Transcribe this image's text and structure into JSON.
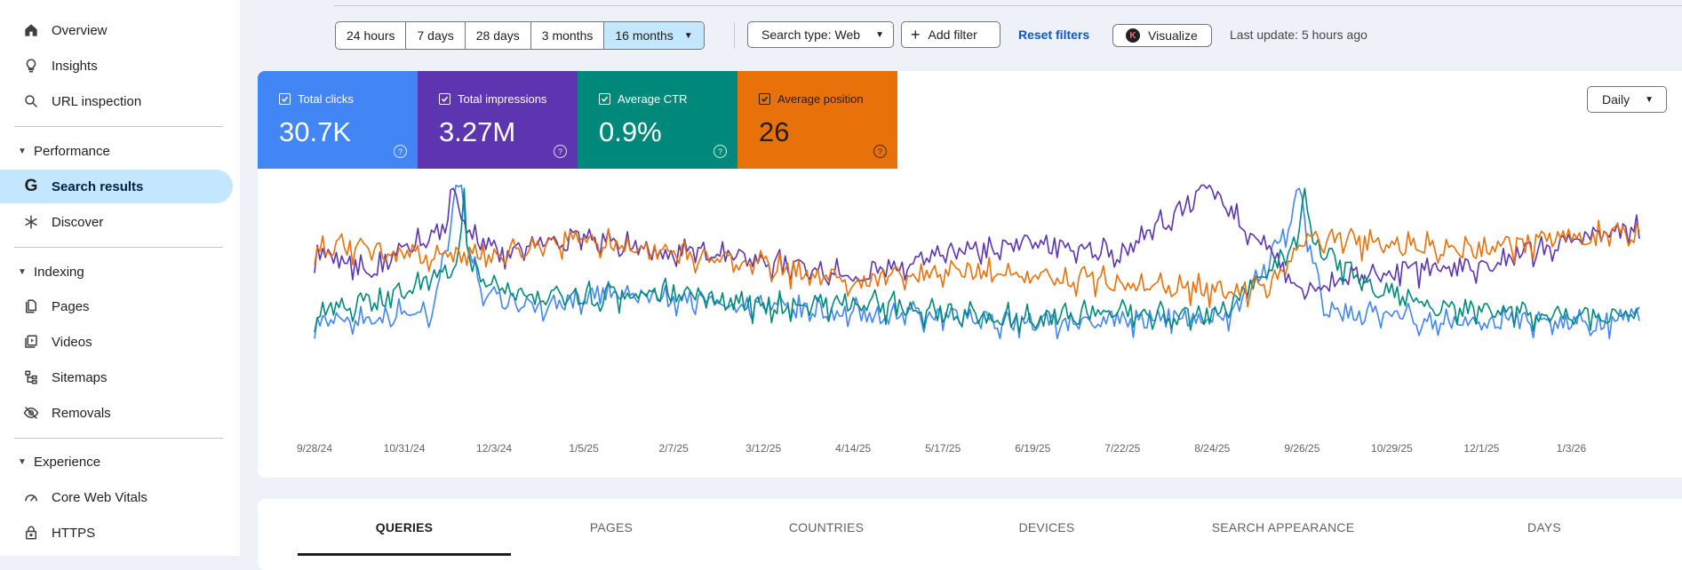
{
  "sidebar": {
    "items_top": [
      {
        "label": "Overview",
        "icon": "home-icon"
      },
      {
        "label": "Insights",
        "icon": "lightbulb-icon"
      },
      {
        "label": "URL inspection",
        "icon": "search-icon"
      }
    ],
    "sections": [
      {
        "title": "Performance",
        "items": [
          {
            "label": "Search results",
            "icon": "google-g-icon",
            "active": true
          },
          {
            "label": "Discover",
            "icon": "asterisk-icon"
          }
        ]
      },
      {
        "title": "Indexing",
        "items": [
          {
            "label": "Pages",
            "icon": "pages-icon"
          },
          {
            "label": "Videos",
            "icon": "video-icon"
          },
          {
            "label": "Sitemaps",
            "icon": "sitemap-icon"
          },
          {
            "label": "Removals",
            "icon": "eye-off-icon"
          }
        ]
      },
      {
        "title": "Experience",
        "items": [
          {
            "label": "Core Web Vitals",
            "icon": "gauge-icon"
          },
          {
            "label": "HTTPS",
            "icon": "lock-icon"
          }
        ]
      }
    ]
  },
  "toolbar": {
    "ranges": [
      "24 hours",
      "7 days",
      "28 days",
      "3 months",
      "16 months"
    ],
    "active_range": "16 months",
    "search_type": "Search type: Web",
    "add_filter": "Add filter",
    "reset_filters": "Reset filters",
    "visualize": "Visualize",
    "visualize_badge": "K",
    "last_update": "Last update: 5 hours ago"
  },
  "metrics": [
    {
      "label": "Total clicks",
      "value": "30.7K",
      "color": "#4285f4"
    },
    {
      "label": "Total impressions",
      "value": "3.27M",
      "color": "#5e35b1"
    },
    {
      "label": "Average CTR",
      "value": "0.9%",
      "color": "#00897b"
    },
    {
      "label": "Average position",
      "value": "26",
      "color": "#e8710a"
    }
  ],
  "granularity": "Daily",
  "chart_data": {
    "type": "line",
    "x_tick_labels": [
      "9/28/24",
      "10/31/24",
      "12/3/24",
      "1/5/25",
      "2/7/25",
      "3/12/25",
      "4/14/25",
      "5/17/25",
      "6/19/25",
      "7/22/25",
      "8/24/25",
      "9/26/25",
      "10/29/25",
      "12/1/25",
      "1/3/26"
    ],
    "x_range": [
      "9/28/24",
      "1/28/26"
    ],
    "y_axis": "none",
    "grid": false,
    "series": [
      {
        "name": "Total clicks",
        "color": "#4285f4",
        "spike_dates": [
          "11/20/24",
          "9/25/25"
        ],
        "points": [
          [
            "9/28/24",
            12
          ],
          [
            "10/20/24",
            16
          ],
          [
            "11/10/24",
            20
          ],
          [
            "11/20/24",
            95
          ],
          [
            "11/28/24",
            28
          ],
          [
            "12/20/24",
            22
          ],
          [
            "1/10/25",
            30
          ],
          [
            "2/1/25",
            28
          ],
          [
            "2/25/25",
            25
          ],
          [
            "3/20/25",
            20
          ],
          [
            "4/14/25",
            18
          ],
          [
            "5/5/25",
            16
          ],
          [
            "6/1/25",
            14
          ],
          [
            "6/25/25",
            12
          ],
          [
            "7/20/25",
            14
          ],
          [
            "8/10/25",
            15
          ],
          [
            "9/1/25",
            18
          ],
          [
            "9/25/25",
            80
          ],
          [
            "10/5/25",
            20
          ],
          [
            "10/29/25",
            16
          ],
          [
            "11/20/25",
            12
          ],
          [
            "12/15/25",
            14
          ],
          [
            "1/10/26",
            12
          ],
          [
            "1/28/26",
            16
          ]
        ]
      },
      {
        "name": "Total impressions",
        "color": "#5e35b1",
        "spike_dates": [
          "11/18/24",
          "8/22/25"
        ],
        "points": [
          [
            "9/28/24",
            55
          ],
          [
            "10/20/24",
            45
          ],
          [
            "11/18/24",
            75
          ],
          [
            "12/5/24",
            55
          ],
          [
            "1/5/25",
            65
          ],
          [
            "2/1/25",
            55
          ],
          [
            "2/25/25",
            55
          ],
          [
            "3/20/25",
            48
          ],
          [
            "4/14/25",
            42
          ],
          [
            "5/17/25",
            55
          ],
          [
            "6/19/25",
            62
          ],
          [
            "7/22/25",
            55
          ],
          [
            "8/22/25",
            95
          ],
          [
            "9/10/25",
            65
          ],
          [
            "9/26/25",
            32
          ],
          [
            "10/15/25",
            42
          ],
          [
            "11/5/25",
            45
          ],
          [
            "12/1/25",
            48
          ],
          [
            "1/3/26",
            65
          ],
          [
            "1/28/26",
            70
          ]
        ]
      },
      {
        "name": "Average CTR",
        "color": "#00897b",
        "spike_dates": [
          "11/22/24",
          "9/27/25"
        ],
        "points": [
          [
            "9/28/24",
            18
          ],
          [
            "10/20/24",
            25
          ],
          [
            "11/22/24",
            48
          ],
          [
            "12/10/24",
            30
          ],
          [
            "1/5/25",
            28
          ],
          [
            "2/7/25",
            30
          ],
          [
            "3/12/25",
            22
          ],
          [
            "4/14/25",
            25
          ],
          [
            "5/17/25",
            18
          ],
          [
            "6/19/25",
            14
          ],
          [
            "7/22/25",
            18
          ],
          [
            "8/24/25",
            15
          ],
          [
            "9/27/25",
            65
          ],
          [
            "10/20/25",
            35
          ],
          [
            "11/15/25",
            22
          ],
          [
            "12/10/25",
            18
          ],
          [
            "1/3/26",
            16
          ],
          [
            "1/28/26",
            18
          ]
        ]
      },
      {
        "name": "Average position",
        "color": "#e8710a",
        "spike_dates": [],
        "points": [
          [
            "9/28/24",
            60
          ],
          [
            "10/31/24",
            55
          ],
          [
            "12/3/24",
            55
          ],
          [
            "1/5/25",
            65
          ],
          [
            "2/7/25",
            55
          ],
          [
            "3/12/25",
            48
          ],
          [
            "4/14/25",
            38
          ],
          [
            "5/17/25",
            45
          ],
          [
            "6/19/25",
            42
          ],
          [
            "7/22/25",
            38
          ],
          [
            "8/24/25",
            32
          ],
          [
            "9/15/25",
            35
          ],
          [
            "9/26/25",
            65
          ],
          [
            "10/29/25",
            60
          ],
          [
            "12/1/25",
            58
          ],
          [
            "1/3/26",
            65
          ],
          [
            "1/28/26",
            68
          ]
        ]
      }
    ]
  },
  "tabs": [
    "QUERIES",
    "PAGES",
    "COUNTRIES",
    "DEVICES",
    "SEARCH APPEARANCE",
    "DAYS"
  ],
  "active_tab": "QUERIES"
}
